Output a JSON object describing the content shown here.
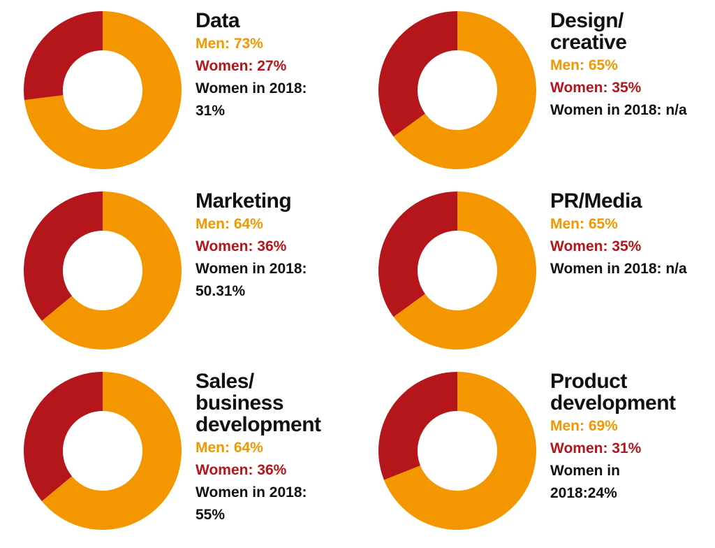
{
  "colors": {
    "men": "#F39600",
    "women": "#B5161B"
  },
  "chart_data": [
    {
      "type": "pie",
      "title": "Data",
      "categories": [
        "Men",
        "Women"
      ],
      "values": [
        73,
        27
      ],
      "men_text": "Men: 73%",
      "women_text": "Women: 27%",
      "women_2018_text": "Women in 2018:\n31%"
    },
    {
      "type": "pie",
      "title": "Design/\ncreative",
      "categories": [
        "Men",
        "Women"
      ],
      "values": [
        65,
        35
      ],
      "men_text": "Men: 65%",
      "women_text": "Women: 35%",
      "women_2018_text": "Women in 2018: n/a"
    },
    {
      "type": "pie",
      "title": "Marketing",
      "categories": [
        "Men",
        "Women"
      ],
      "values": [
        64,
        36
      ],
      "men_text": "Men: 64%",
      "women_text": "Women: 36%",
      "women_2018_text": "Women in 2018:\n50.31%"
    },
    {
      "type": "pie",
      "title": "PR/Media",
      "categories": [
        "Men",
        "Women"
      ],
      "values": [
        65,
        35
      ],
      "men_text": "Men: 65%",
      "women_text": "Women: 35%",
      "women_2018_text": "Women in 2018: n/a"
    },
    {
      "type": "pie",
      "title": "Sales/\nbusiness\ndevelopment",
      "categories": [
        "Men",
        "Women"
      ],
      "values": [
        64,
        36
      ],
      "men_text": "Men: 64%",
      "women_text": "Women: 36%",
      "women_2018_text": "Women in 2018:\n55%"
    },
    {
      "type": "pie",
      "title": "Product\ndevelopment",
      "categories": [
        "Men",
        "Women"
      ],
      "values": [
        69,
        31
      ],
      "men_text": "Men: 69%",
      "women_text": "Women: 31%",
      "women_2018_text": "Women in\n2018:24%"
    }
  ]
}
